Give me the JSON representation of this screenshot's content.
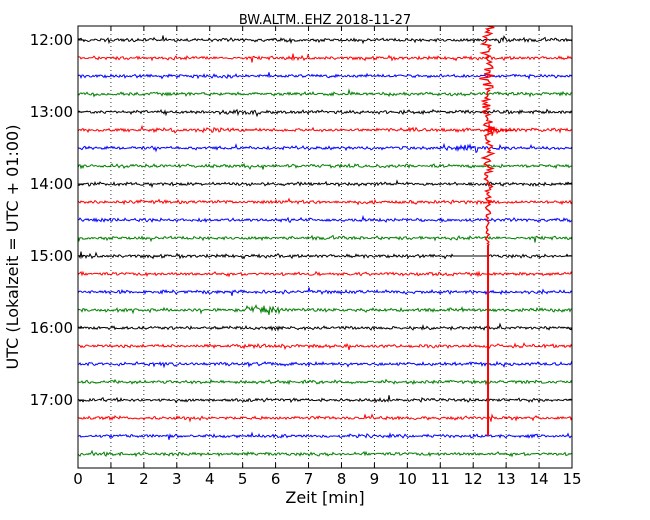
{
  "chart_data": {
    "type": "line",
    "title": "BW.ALTM..EHZ 2018-11-27",
    "xlabel": "Zeit  [min]",
    "ylabel": "UTC (Lokalzeit = UTC + 01:00)",
    "xlim": [
      0,
      15
    ],
    "x_ticks": [
      "0",
      "1",
      "2",
      "3",
      "4",
      "5",
      "6",
      "7",
      "8",
      "9",
      "10",
      "11",
      "12",
      "13",
      "14",
      "15"
    ],
    "y_tick_labels": [
      "12:00",
      "13:00",
      "14:00",
      "15:00",
      "16:00",
      "17:00"
    ],
    "trace_start": "12:00",
    "trace_interval_minutes": 15,
    "trace_count": 24,
    "color_cycle": [
      "#000000",
      "#ff0000",
      "#0000ff",
      "#008000"
    ],
    "grid": "vertical dotted",
    "event_minute": 12.45
  }
}
